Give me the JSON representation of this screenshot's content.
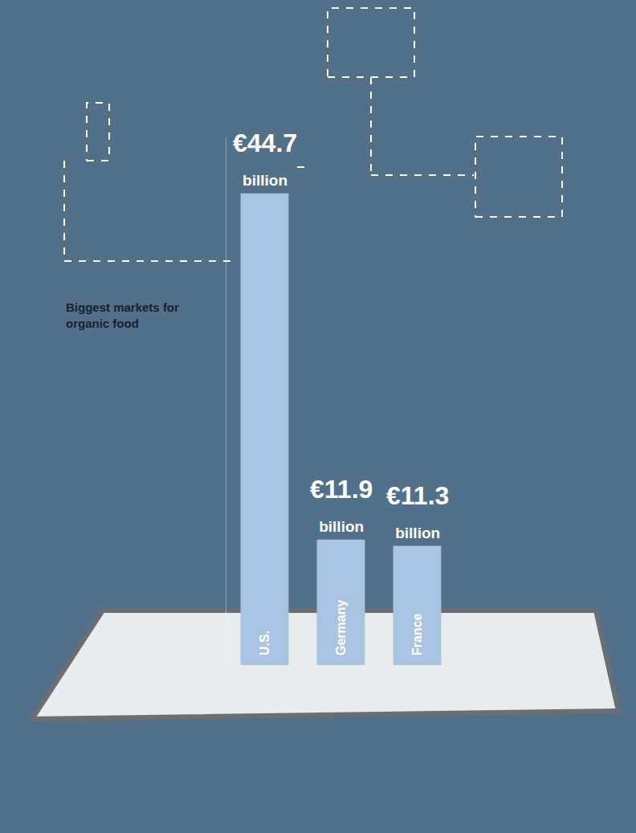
{
  "chart_data": {
    "type": "bar",
    "title": "Biggest markets for organic food",
    "categories": [
      "U.S.",
      "Germany",
      "France"
    ],
    "values": [
      44.7,
      11.9,
      11.3
    ],
    "value_labels": [
      "€44.7 billion",
      "€11.9 billion",
      "€11.3 billion"
    ],
    "data_labels": true,
    "color": "#a9c4e0",
    "ylim": [
      0,
      50
    ],
    "yticks": [],
    "tick_labels": false,
    "grid": false
  }
}
